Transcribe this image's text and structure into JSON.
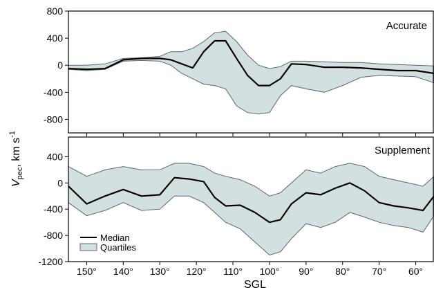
{
  "chart_data": [
    {
      "type": "area",
      "label": "Accurate",
      "xlabel": "SGL",
      "ylabel_main": "V",
      "ylabel_sub": "pec",
      "ylabel_units_text": ", km s",
      "ylabel_units_sup": "-1",
      "xlim": [
        155,
        55
      ],
      "ylim": [
        -1000,
        800
      ],
      "yticks": [
        "800",
        "400",
        "0",
        "-400",
        "-800"
      ],
      "yticks_values": [
        800,
        400,
        0,
        -400,
        -800
      ],
      "x": [
        155,
        150,
        145,
        140,
        135,
        130,
        127,
        124,
        121,
        118,
        115,
        112,
        109,
        106,
        103,
        100,
        97,
        94,
        90,
        85,
        80,
        75,
        70,
        65,
        60,
        55
      ],
      "median": [
        -50,
        -60,
        -50,
        80,
        100,
        100,
        80,
        20,
        -40,
        200,
        360,
        360,
        100,
        -150,
        -300,
        -300,
        -200,
        20,
        10,
        -30,
        -30,
        -40,
        -60,
        -80,
        -80,
        -120
      ],
      "q_low": [
        -60,
        -80,
        -60,
        60,
        70,
        60,
        0,
        -120,
        -200,
        -280,
        -300,
        -350,
        -600,
        -700,
        -720,
        -700,
        -450,
        -300,
        -350,
        -400,
        -300,
        -180,
        -150,
        -160,
        -170,
        -260
      ],
      "q_high": [
        0,
        0,
        20,
        100,
        110,
        130,
        200,
        200,
        250,
        350,
        480,
        500,
        350,
        150,
        0,
        -50,
        -20,
        60,
        60,
        50,
        40,
        40,
        20,
        10,
        0,
        -10
      ]
    },
    {
      "type": "area",
      "label": "Supplement",
      "xlabel": "SGL",
      "xlim": [
        155,
        55
      ],
      "ylim": [
        -1200,
        700
      ],
      "yticks": [
        "400",
        "0",
        "-400",
        "-800",
        "-1200"
      ],
      "yticks_values": [
        400,
        0,
        -400,
        -800,
        -1200
      ],
      "xticks": [
        "150°",
        "140°",
        "130°",
        "120°",
        "110°",
        "100°",
        "90°",
        "80°",
        "70°",
        "60°"
      ],
      "xticks_values": [
        150,
        140,
        130,
        120,
        110,
        100,
        90,
        80,
        70,
        60
      ],
      "x": [
        155,
        150,
        145,
        140,
        135,
        130,
        126,
        122,
        118,
        115,
        112,
        108,
        104,
        100,
        97,
        94,
        90,
        86,
        82,
        78,
        74,
        70,
        66,
        62,
        58,
        55
      ],
      "median": [
        -50,
        -320,
        -200,
        -100,
        -200,
        -180,
        80,
        60,
        20,
        -220,
        -350,
        -340,
        -450,
        -600,
        -560,
        -320,
        -150,
        -180,
        -80,
        0,
        -120,
        -300,
        -350,
        -380,
        -420,
        -200
      ],
      "q_low": [
        -300,
        -500,
        -420,
        -300,
        -420,
        -400,
        -200,
        -200,
        -300,
        -450,
        -600,
        -700,
        -900,
        -1100,
        -1050,
        -850,
        -620,
        -680,
        -600,
        -450,
        -520,
        -600,
        -650,
        -680,
        -750,
        -500
      ],
      "q_high": [
        250,
        100,
        200,
        250,
        200,
        200,
        300,
        300,
        250,
        150,
        100,
        50,
        -50,
        -200,
        -150,
        0,
        200,
        150,
        250,
        300,
        250,
        100,
        50,
        0,
        -50,
        100
      ]
    }
  ],
  "legend": {
    "median_label": "Median",
    "quartiles_label": "Quartiles"
  },
  "colors": {
    "median": "#000000",
    "band_fill": "#d2e0e0",
    "band_edge": "#5b6577"
  }
}
